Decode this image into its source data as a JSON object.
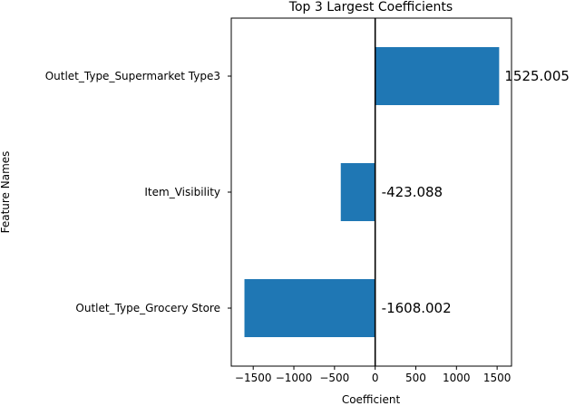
{
  "chart_data": {
    "type": "bar",
    "orientation": "horizontal",
    "title": "Top 3 Largest Coefficients",
    "xlabel": "Coefficient",
    "ylabel": "Feature Names",
    "categories": [
      "Outlet_Type_Supermarket Type3",
      "Item_Visibility",
      "Outlet_Type_Grocery Store"
    ],
    "values": [
      1525.005,
      -423.088,
      -1608.002
    ],
    "data_labels": [
      "1525.005",
      "-423.088",
      "-1608.002"
    ],
    "xlim": [
      -1770,
      1677
    ],
    "xticks": [
      -1500,
      -1000,
      -500,
      0,
      500,
      1000,
      1500
    ],
    "xtick_labels": [
      "−1500",
      "−1000",
      "−500",
      "0",
      "500",
      "1000",
      "1500"
    ],
    "zero_line": true,
    "grid": false,
    "legend": "none",
    "colors": {
      "bar": "#1f77b4",
      "zero_line": "#000000",
      "axis": "#000000",
      "background": "#ffffff"
    }
  }
}
